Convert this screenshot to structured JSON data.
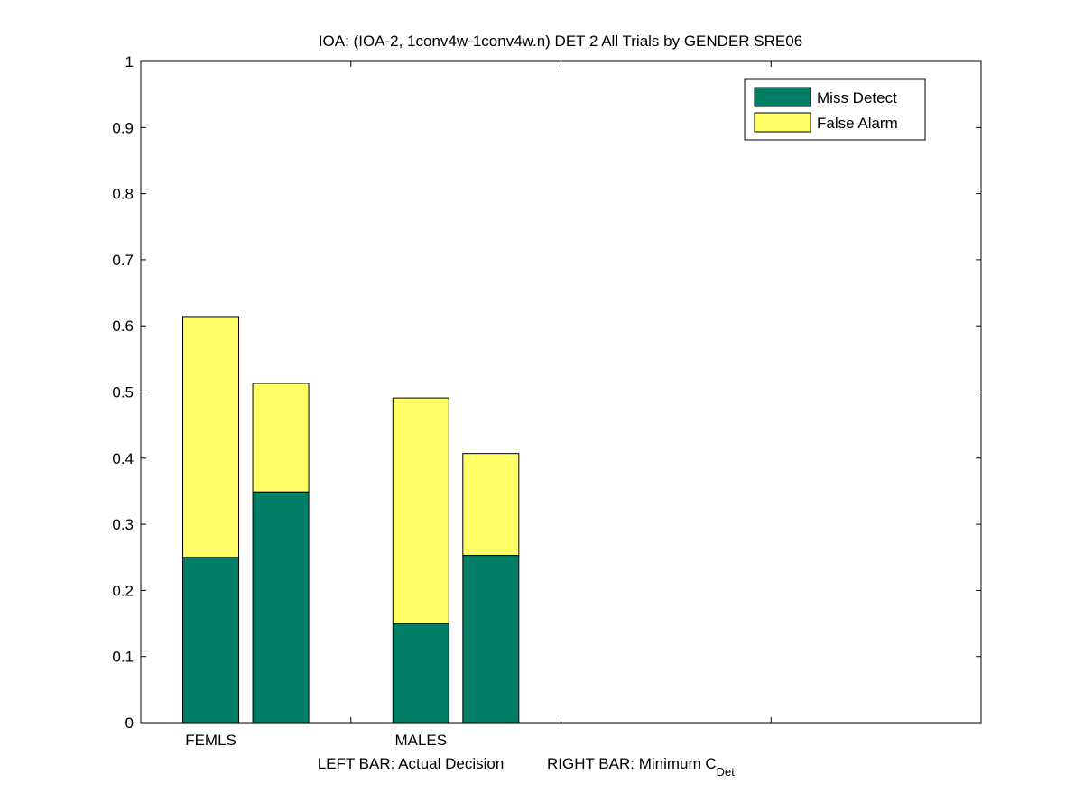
{
  "chart_data": {
    "type": "bar",
    "stacked": true,
    "title": "IOA: (IOA-2, 1conv4w-1conv4w.n) DET 2 All Trials by GENDER SRE06",
    "xlabel": {
      "left_text": "LEFT BAR: Actual Decision",
      "right_text": "RIGHT BAR: Minimum C",
      "right_subscript": "Det"
    },
    "ylabel": "",
    "ylim": [
      0,
      1
    ],
    "yticks": [
      "0",
      "0.1",
      "0.2",
      "0.3",
      "0.4",
      "0.5",
      "0.6",
      "0.7",
      "0.8",
      "0.9",
      "1"
    ],
    "categories": [
      "FEMLS",
      "MALES"
    ],
    "bar_roles": [
      "Actual Decision",
      "Minimum C_Det"
    ],
    "series": [
      {
        "name": "Miss Detect",
        "color": "#007f66",
        "values": [
          [
            0.25,
            0.349
          ],
          [
            0.15,
            0.253
          ]
        ]
      },
      {
        "name": "False Alarm",
        "color": "#ffff66",
        "values": [
          [
            0.364,
            0.164
          ],
          [
            0.341,
            0.154
          ]
        ]
      }
    ],
    "grid": false,
    "legend": "top-right"
  }
}
